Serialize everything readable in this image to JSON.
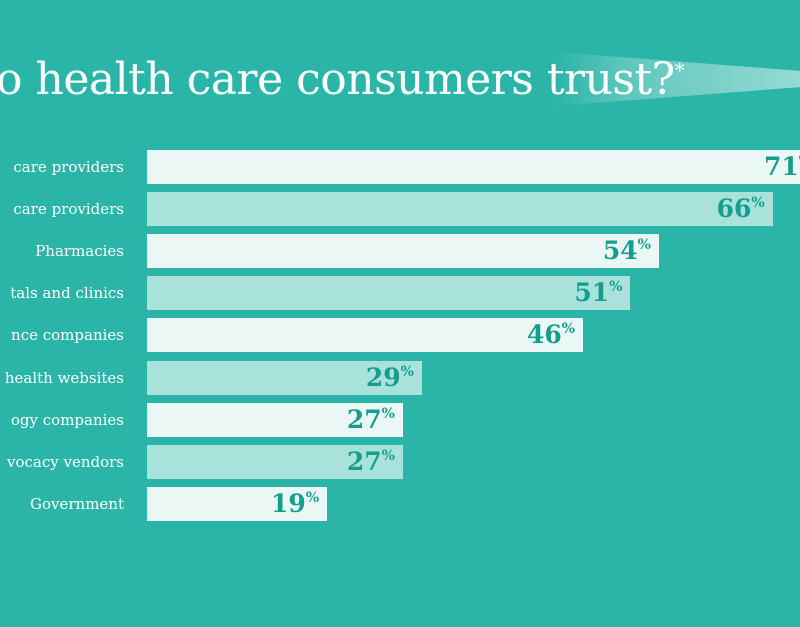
{
  "chart_data": {
    "type": "bar",
    "orientation": "horizontal",
    "title": "o health care consumers trust?",
    "title_marker": "*",
    "categories": [
      "care providers",
      "care providers",
      "Pharmacies",
      "tals and clinics",
      "nce companies",
      "health websites",
      "ogy companies",
      "vocacy vendors",
      "Government"
    ],
    "values": [
      71,
      66,
      54,
      51,
      46,
      29,
      27,
      27,
      19
    ],
    "value_suffix": "%",
    "xlim": [
      0,
      71
    ],
    "grid": false,
    "colors": {
      "background": "#2bb5a8",
      "bar_light": "#eaf7f5",
      "bar_alt": "#a8e2da",
      "value_text": "#159e90",
      "label_text": "#ffffff"
    }
  }
}
